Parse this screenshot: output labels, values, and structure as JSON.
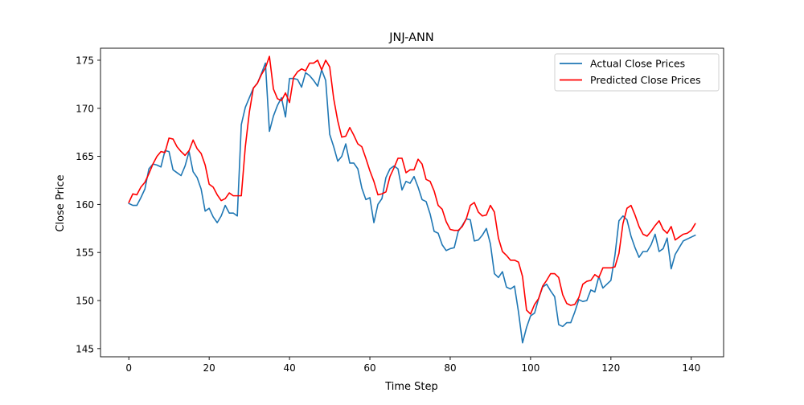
{
  "chart_data": {
    "type": "line",
    "title": "JNJ-ANN",
    "xlabel": "Time Step",
    "ylabel": "Close Price",
    "xlim": [
      -7.05,
      148.05
    ],
    "ylim": [
      144.15,
      176.25
    ],
    "xticks": [
      0,
      20,
      40,
      60,
      80,
      100,
      120,
      140
    ],
    "yticks": [
      145,
      150,
      155,
      160,
      165,
      170,
      175
    ],
    "grid": false,
    "legend_position": "top-right",
    "series": [
      {
        "name": "Actual Close Prices",
        "color": "#1f77b4",
        "values": [
          160.1,
          159.9,
          159.9,
          160.7,
          161.6,
          163.7,
          164.2,
          164.1,
          163.9,
          165.6,
          165.5,
          163.6,
          163.3,
          163.0,
          164.0,
          165.5,
          163.4,
          162.8,
          161.6,
          159.3,
          159.6,
          158.7,
          158.1,
          158.8,
          159.9,
          159.1,
          159.1,
          158.8,
          168.3,
          170.1,
          171.1,
          172.1,
          172.6,
          173.6,
          174.7,
          167.6,
          169.2,
          170.3,
          171.1,
          169.1,
          173.1,
          173.1,
          173.0,
          172.2,
          173.7,
          173.4,
          172.9,
          172.3,
          174.0,
          172.9,
          167.3,
          166.0,
          164.5,
          165.0,
          166.3,
          164.3,
          164.3,
          163.7,
          161.7,
          160.5,
          160.7,
          158.1,
          160.0,
          160.6,
          162.8,
          163.7,
          164.0,
          163.7,
          161.5,
          162.4,
          162.2,
          162.9,
          161.8,
          160.5,
          160.3,
          159.0,
          157.2,
          157.0,
          155.8,
          155.2,
          155.4,
          155.5,
          157.2,
          157.8,
          158.5,
          158.4,
          156.2,
          156.3,
          156.8,
          157.5,
          155.9,
          152.8,
          152.4,
          153.0,
          151.4,
          151.2,
          151.5,
          148.8,
          145.6,
          147.2,
          148.4,
          148.7,
          150.2,
          151.4,
          151.7,
          151.0,
          150.4,
          147.5,
          147.3,
          147.7,
          147.7,
          148.8,
          150.1,
          149.9,
          150.0,
          151.1,
          150.9,
          152.5,
          151.3,
          151.7,
          152.1,
          154.7,
          158.3,
          158.8,
          158.4,
          156.7,
          155.5,
          154.5,
          155.1,
          155.1,
          155.8,
          156.9,
          155.1,
          155.4,
          156.5,
          153.3,
          154.8,
          155.5,
          156.2,
          156.4,
          156.6,
          156.8
        ]
      },
      {
        "name": "Predicted Close Prices",
        "color": "#ff0000",
        "values": [
          160.2,
          161.1,
          161.0,
          161.8,
          162.3,
          163.2,
          164.2,
          165.0,
          165.5,
          165.4,
          166.9,
          166.8,
          166.0,
          165.5,
          165.1,
          165.6,
          166.7,
          165.8,
          165.3,
          164.1,
          162.1,
          161.8,
          161.0,
          160.4,
          160.6,
          161.2,
          160.9,
          160.9,
          160.9,
          166.0,
          169.6,
          172.1,
          172.6,
          173.5,
          174.2,
          175.4,
          172.0,
          171.0,
          170.8,
          171.6,
          170.6,
          173.2,
          173.8,
          174.1,
          173.9,
          174.7,
          174.7,
          175.0,
          174.0,
          175.0,
          174.3,
          171.0,
          168.7,
          167.0,
          167.1,
          168.0,
          167.2,
          166.3,
          166.0,
          164.8,
          163.5,
          162.4,
          161.0,
          161.1,
          161.3,
          162.9,
          163.8,
          164.8,
          164.8,
          163.3,
          163.6,
          163.6,
          164.7,
          164.2,
          162.6,
          162.4,
          161.4,
          159.9,
          159.5,
          158.2,
          157.4,
          157.3,
          157.3,
          157.7,
          158.5,
          159.9,
          160.2,
          159.2,
          158.8,
          158.9,
          159.9,
          159.2,
          156.5,
          155.1,
          154.7,
          154.2,
          154.2,
          154.0,
          152.5,
          149.0,
          148.6,
          149.6,
          150.2,
          151.5,
          152.1,
          152.8,
          152.8,
          152.4,
          150.6,
          149.7,
          149.5,
          149.6,
          150.3,
          151.7,
          152.0,
          152.1,
          152.7,
          152.4,
          153.4,
          153.4,
          153.4,
          153.5,
          154.9,
          158.0,
          159.6,
          159.9,
          158.9,
          157.7,
          156.9,
          156.7,
          157.2,
          157.8,
          158.3,
          157.4,
          157.0,
          157.7,
          156.3,
          156.6,
          156.9,
          157.0,
          157.3,
          158.0
        ]
      }
    ]
  }
}
